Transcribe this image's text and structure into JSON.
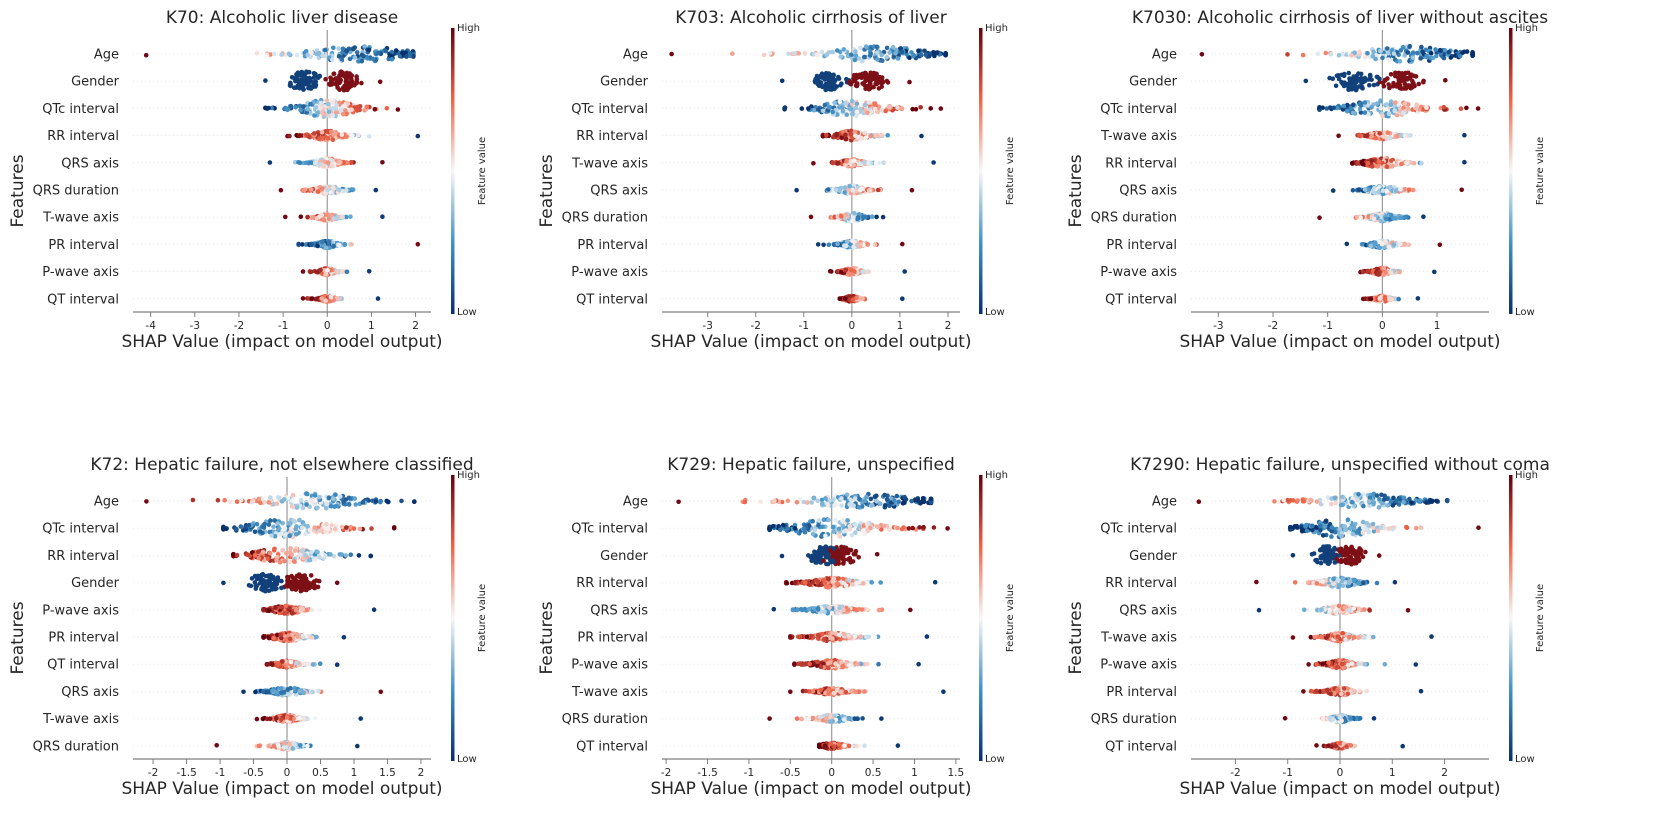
{
  "colors": {
    "low": "#08306b",
    "mid": "#f7f7f7",
    "high": "#67000d",
    "axis": "#7f7f7f",
    "zero_line": "#999999"
  },
  "common": {
    "xlabel": "SHAP Value (impact on model output)",
    "ylabel": "Features",
    "colorbar_label": "Feature value",
    "colorbar_high": "High",
    "colorbar_low": "Low"
  },
  "chart_data": [
    {
      "type": "scatter",
      "title": "K70: Alcoholic liver disease",
      "xlim": [
        -4.4,
        2.35
      ],
      "xticks": [
        -4,
        -3,
        -2,
        -1,
        0,
        1,
        2
      ],
      "features": [
        {
          "name": "Age",
          "min": -4.1,
          "max": 1.95,
          "width": 0.65,
          "center": 0.7,
          "spread": 1.0,
          "corr": -1
        },
        {
          "name": "Gender",
          "min": -1.4,
          "max": 1.2,
          "width": 0.8,
          "center": 0,
          "spread": 0.4,
          "corr": 1,
          "binary": true,
          "neg": -0.5,
          "pos": 0.35
        },
        {
          "name": "QTc interval",
          "min": -1.4,
          "max": 1.6,
          "width": 0.7,
          "center": 0,
          "spread": 0.6,
          "corr": 1
        },
        {
          "name": "RR interval",
          "min": -0.9,
          "max": 2.05,
          "width": 0.4,
          "center": 0,
          "spread": 0.3,
          "corr": -1
        },
        {
          "name": "QRS axis",
          "min": -1.3,
          "max": 1.25,
          "width": 0.35,
          "center": 0,
          "spread": 0.25,
          "corr": 1
        },
        {
          "name": "QRS duration",
          "min": -1.05,
          "max": 1.1,
          "width": 0.35,
          "center": 0,
          "spread": 0.25,
          "corr": -1
        },
        {
          "name": "T-wave axis",
          "min": -0.95,
          "max": 1.25,
          "width": 0.3,
          "center": 0,
          "spread": 0.2,
          "corr": -1
        },
        {
          "name": "PR interval",
          "min": -0.65,
          "max": 2.05,
          "width": 0.3,
          "center": 0,
          "spread": 0.2,
          "corr": 1
        },
        {
          "name": "P-wave axis",
          "min": -0.55,
          "max": 0.95,
          "width": 0.3,
          "center": 0,
          "spread": 0.15,
          "corr": -1
        },
        {
          "name": "QT interval",
          "min": -0.55,
          "max": 1.15,
          "width": 0.25,
          "center": 0,
          "spread": 0.15,
          "corr": -1
        }
      ]
    },
    {
      "type": "scatter",
      "title": "K703: Alcoholic cirrhosis of liver",
      "xlim": [
        -3.95,
        2.25
      ],
      "xticks": [
        -3,
        -2,
        -1,
        0,
        1,
        2
      ],
      "features": [
        {
          "name": "Age",
          "min": -3.75,
          "max": 1.95,
          "width": 0.65,
          "center": 0.5,
          "spread": 0.9,
          "corr": -1
        },
        {
          "name": "Gender",
          "min": -1.45,
          "max": 1.2,
          "width": 0.75,
          "center": 0,
          "spread": 0.4,
          "corr": 1,
          "binary": true,
          "neg": -0.5,
          "pos": 0.35
        },
        {
          "name": "QTc interval",
          "min": -1.4,
          "max": 1.85,
          "width": 0.7,
          "center": 0,
          "spread": 0.6,
          "corr": 1
        },
        {
          "name": "RR interval",
          "min": -0.6,
          "max": 1.45,
          "width": 0.4,
          "center": 0,
          "spread": 0.3,
          "corr": -1
        },
        {
          "name": "T-wave axis",
          "min": -0.8,
          "max": 1.7,
          "width": 0.3,
          "center": 0,
          "spread": 0.2,
          "corr": -1
        },
        {
          "name": "QRS axis",
          "min": -1.15,
          "max": 1.25,
          "width": 0.35,
          "center": 0,
          "spread": 0.25,
          "corr": 1
        },
        {
          "name": "QRS duration",
          "min": -0.85,
          "max": 0.65,
          "width": 0.35,
          "center": 0,
          "spread": 0.2,
          "corr": -1
        },
        {
          "name": "PR interval",
          "min": -0.7,
          "max": 1.05,
          "width": 0.3,
          "center": 0,
          "spread": 0.2,
          "corr": 1
        },
        {
          "name": "P-wave axis",
          "min": -0.45,
          "max": 1.1,
          "width": 0.3,
          "center": 0,
          "spread": 0.15,
          "corr": -1
        },
        {
          "name": "QT interval",
          "min": -0.25,
          "max": 1.05,
          "width": 0.25,
          "center": 0,
          "spread": 0.12,
          "corr": -1
        }
      ]
    },
    {
      "type": "scatter",
      "title": "K7030: Alcoholic cirrhosis of liver without ascites",
      "xlim": [
        -3.5,
        1.95
      ],
      "xticks": [
        -3,
        -2,
        -1,
        0,
        1
      ],
      "features": [
        {
          "name": "Age",
          "min": -3.3,
          "max": 1.65,
          "width": 0.65,
          "center": 0.5,
          "spread": 0.8,
          "corr": -1
        },
        {
          "name": "Gender",
          "min": -1.4,
          "max": 1.15,
          "width": 0.75,
          "center": 0,
          "spread": 0.4,
          "corr": 1,
          "binary": true,
          "neg": -0.5,
          "pos": 0.35
        },
        {
          "name": "QTc interval",
          "min": -1.15,
          "max": 1.75,
          "width": 0.7,
          "center": 0,
          "spread": 0.6,
          "corr": 1
        },
        {
          "name": "T-wave axis",
          "min": -0.8,
          "max": 1.5,
          "width": 0.3,
          "center": 0,
          "spread": 0.2,
          "corr": -1
        },
        {
          "name": "RR interval",
          "min": -0.55,
          "max": 1.5,
          "width": 0.4,
          "center": 0,
          "spread": 0.3,
          "corr": -1
        },
        {
          "name": "QRS axis",
          "min": -0.9,
          "max": 1.45,
          "width": 0.35,
          "center": 0,
          "spread": 0.25,
          "corr": 1
        },
        {
          "name": "QRS duration",
          "min": -1.15,
          "max": 0.75,
          "width": 0.35,
          "center": 0,
          "spread": 0.2,
          "corr": -1
        },
        {
          "name": "PR interval",
          "min": -0.65,
          "max": 1.05,
          "width": 0.3,
          "center": 0,
          "spread": 0.2,
          "corr": 1
        },
        {
          "name": "P-wave axis",
          "min": -0.4,
          "max": 0.95,
          "width": 0.3,
          "center": 0,
          "spread": 0.15,
          "corr": -1
        },
        {
          "name": "QT interval",
          "min": -0.35,
          "max": 0.65,
          "width": 0.25,
          "center": 0,
          "spread": 0.12,
          "corr": -1
        }
      ]
    },
    {
      "type": "scatter",
      "title": "K72: Hepatic failure, not elsewhere classified",
      "xlim": [
        -2.3,
        2.15
      ],
      "xticks": [
        -2.0,
        -1.5,
        -1.0,
        -0.5,
        0.0,
        0.5,
        1.0,
        1.5,
        2.0
      ],
      "features": [
        {
          "name": "Age",
          "min": -2.1,
          "max": 1.9,
          "width": 0.65,
          "center": 0.4,
          "spread": 0.6,
          "corr": -1
        },
        {
          "name": "QTc interval",
          "min": -0.95,
          "max": 1.6,
          "width": 0.75,
          "center": 0,
          "spread": 0.55,
          "corr": 1
        },
        {
          "name": "RR interval",
          "min": -0.8,
          "max": 1.25,
          "width": 0.65,
          "center": 0,
          "spread": 0.45,
          "corr": -1
        },
        {
          "name": "Gender",
          "min": -0.95,
          "max": 0.75,
          "width": 0.75,
          "center": 0,
          "spread": 0.3,
          "corr": 1,
          "binary": true,
          "neg": -0.3,
          "pos": 0.2
        },
        {
          "name": "P-wave axis",
          "min": -0.35,
          "max": 1.3,
          "width": 0.35,
          "center": 0,
          "spread": 0.2,
          "corr": -1
        },
        {
          "name": "PR interval",
          "min": -0.35,
          "max": 0.85,
          "width": 0.35,
          "center": 0,
          "spread": 0.2,
          "corr": -1
        },
        {
          "name": "QT interval",
          "min": -0.3,
          "max": 0.75,
          "width": 0.3,
          "center": 0,
          "spread": 0.15,
          "corr": -1
        },
        {
          "name": "QRS axis",
          "min": -0.65,
          "max": 1.4,
          "width": 0.35,
          "center": 0,
          "spread": 0.2,
          "corr": 1
        },
        {
          "name": "T-wave axis",
          "min": -0.45,
          "max": 1.1,
          "width": 0.3,
          "center": 0,
          "spread": 0.15,
          "corr": -1
        },
        {
          "name": "QRS duration",
          "min": -1.05,
          "max": 1.05,
          "width": 0.3,
          "center": 0,
          "spread": 0.15,
          "corr": -1
        }
      ]
    },
    {
      "type": "scatter",
      "title": "K729: Hepatic failure, unspecified",
      "xlim": [
        -2.05,
        1.55
      ],
      "xticks": [
        -2.0,
        -1.5,
        -1.0,
        -0.5,
        0.0,
        0.5,
        1.0,
        1.5
      ],
      "features": [
        {
          "name": "Age",
          "min": -1.85,
          "max": 1.2,
          "width": 0.6,
          "center": 0.4,
          "spread": 0.6,
          "corr": -1
        },
        {
          "name": "QTc interval",
          "min": -0.75,
          "max": 1.4,
          "width": 0.75,
          "center": 0,
          "spread": 0.5,
          "corr": 1
        },
        {
          "name": "Gender",
          "min": -0.6,
          "max": 0.55,
          "width": 0.75,
          "center": 0,
          "spread": 0.25,
          "corr": 1,
          "binary": true,
          "neg": -0.1,
          "pos": 0.1
        },
        {
          "name": "RR interval",
          "min": -0.55,
          "max": 1.25,
          "width": 0.4,
          "center": 0,
          "spread": 0.25,
          "corr": -1
        },
        {
          "name": "QRS axis",
          "min": -0.7,
          "max": 0.95,
          "width": 0.35,
          "center": 0,
          "spread": 0.2,
          "corr": 1
        },
        {
          "name": "PR interval",
          "min": -0.5,
          "max": 1.15,
          "width": 0.35,
          "center": 0,
          "spread": 0.2,
          "corr": -1
        },
        {
          "name": "P-wave axis",
          "min": -0.45,
          "max": 1.05,
          "width": 0.35,
          "center": 0,
          "spread": 0.2,
          "corr": -1
        },
        {
          "name": "T-wave axis",
          "min": -0.5,
          "max": 1.35,
          "width": 0.3,
          "center": 0,
          "spread": 0.15,
          "corr": -1
        },
        {
          "name": "QRS duration",
          "min": -0.75,
          "max": 0.6,
          "width": 0.3,
          "center": 0,
          "spread": 0.15,
          "corr": -1
        },
        {
          "name": "QT interval",
          "min": -0.15,
          "max": 0.8,
          "width": 0.25,
          "center": 0,
          "spread": 0.12,
          "corr": -1
        }
      ]
    },
    {
      "type": "scatter",
      "title": "K7290: Hepatic failure, unspecified without coma",
      "xlim": [
        -2.85,
        2.85
      ],
      "xticks": [
        -2,
        -1,
        0,
        1,
        2
      ],
      "features": [
        {
          "name": "Age",
          "min": -2.7,
          "max": 2.05,
          "width": 0.6,
          "center": 0.5,
          "spread": 0.8,
          "corr": -1
        },
        {
          "name": "QTc interval",
          "min": -0.95,
          "max": 2.65,
          "width": 0.75,
          "center": 0,
          "spread": 0.6,
          "corr": 1
        },
        {
          "name": "Gender",
          "min": -0.9,
          "max": 0.75,
          "width": 0.75,
          "center": 0,
          "spread": 0.3,
          "corr": 1,
          "binary": true,
          "neg": -0.25,
          "pos": 0.2
        },
        {
          "name": "RR interval",
          "min": -1.6,
          "max": 1.05,
          "width": 0.4,
          "center": 0,
          "spread": 0.3,
          "corr": -1
        },
        {
          "name": "QRS axis",
          "min": -1.55,
          "max": 1.3,
          "width": 0.35,
          "center": 0,
          "spread": 0.25,
          "corr": 1
        },
        {
          "name": "T-wave axis",
          "min": -0.9,
          "max": 1.75,
          "width": 0.35,
          "center": 0,
          "spread": 0.2,
          "corr": -1
        },
        {
          "name": "P-wave axis",
          "min": -0.6,
          "max": 1.45,
          "width": 0.35,
          "center": 0,
          "spread": 0.2,
          "corr": -1
        },
        {
          "name": "PR interval",
          "min": -0.7,
          "max": 1.55,
          "width": 0.35,
          "center": 0,
          "spread": 0.2,
          "corr": -1
        },
        {
          "name": "QRS duration",
          "min": -1.05,
          "max": 0.65,
          "width": 0.3,
          "center": 0,
          "spread": 0.15,
          "corr": -1
        },
        {
          "name": "QT interval",
          "min": -0.45,
          "max": 1.2,
          "width": 0.25,
          "center": 0,
          "spread": 0.12,
          "corr": -1
        }
      ]
    }
  ]
}
